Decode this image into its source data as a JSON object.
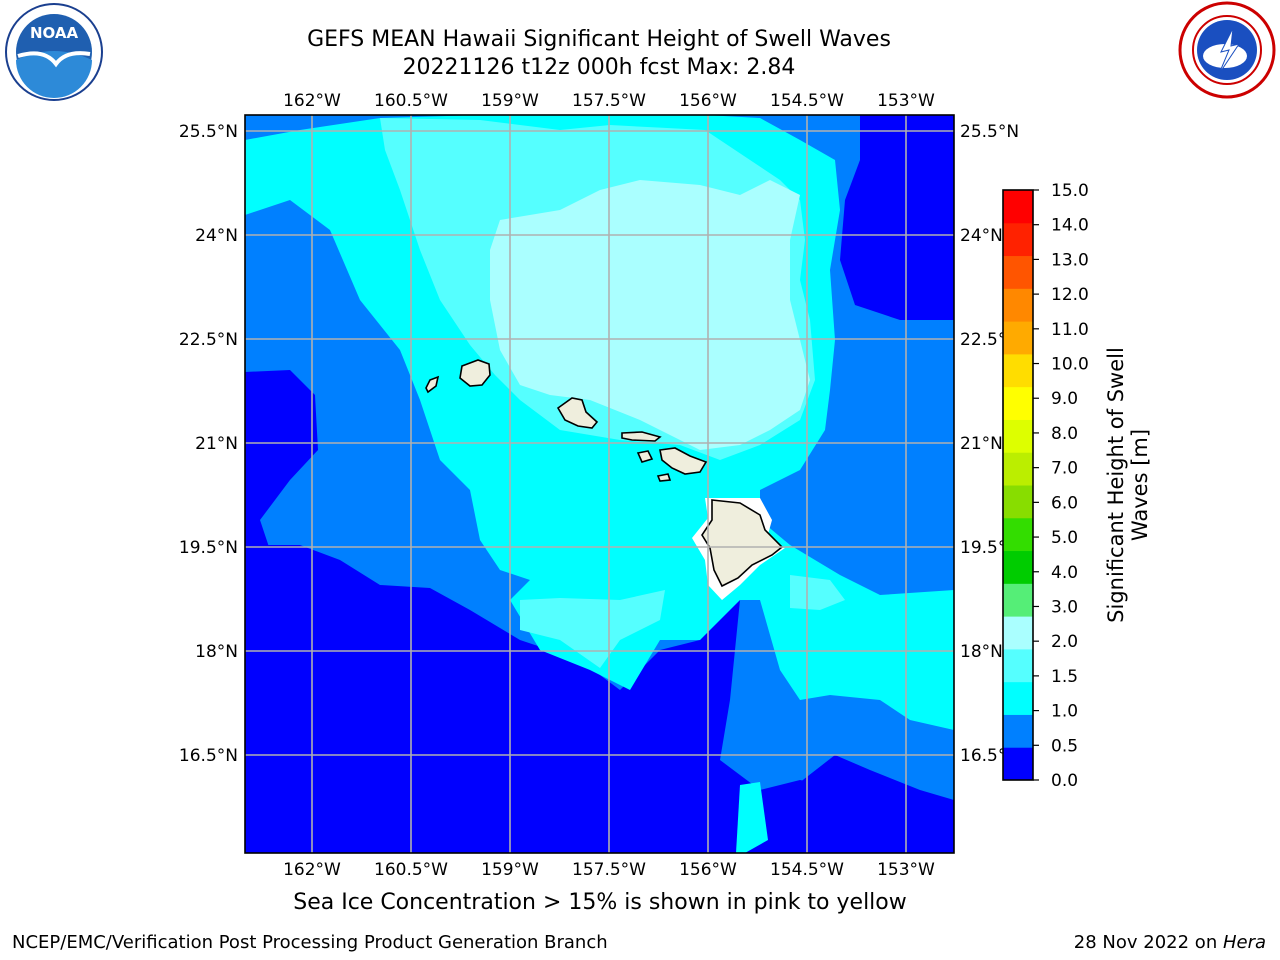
{
  "header": {
    "title_line1": "GEFS MEAN Hawaii Significant Height of Swell Waves",
    "title_line2": "20221126 t12z 000h fcst   Max: 2.84"
  },
  "logos": {
    "left": {
      "name": "noaa-logo",
      "text": "NOAA",
      "ring_text": "NATIONAL OCEANIC AND ATMOSPHERIC ADMINISTRATION · U.S. DEPARTMENT OF COMMERCE"
    },
    "right": {
      "name": "nws-logo",
      "ring_text": "NATIONAL WEATHER SERVICE"
    }
  },
  "map": {
    "lon_ticks": [
      "162°W",
      "160.5°W",
      "159°W",
      "157.5°W",
      "156°W",
      "154.5°W",
      "153°W"
    ],
    "lat_ticks": [
      "25.5°N",
      "24°N",
      "22.5°N",
      "21°N",
      "19.5°N",
      "18°N",
      "16.5°N"
    ],
    "lon_values": [
      -162,
      -160.5,
      -159,
      -157.5,
      -156,
      -154.5,
      -153
    ],
    "lat_values": [
      25.5,
      24,
      22.5,
      21,
      19.5,
      18,
      16.5
    ],
    "colors": {
      "land": "#efeedd",
      "grid": "#b0b0b0",
      "no_data": "#ffffff"
    }
  },
  "colorbar": {
    "label": "Significant Height of Swell Waves [m]",
    "label_line1": "Significant Height of Swell",
    "label_line2": "Waves [m]",
    "ticks": [
      "0.0",
      "0.5",
      "1.0",
      "1.5",
      "2.0",
      "3.0",
      "4.0",
      "5.0",
      "6.0",
      "7.0",
      "8.0",
      "9.0",
      "10.0",
      "11.0",
      "12.0",
      "13.0",
      "14.0",
      "15.0"
    ],
    "colors": [
      "#0000ff",
      "#0080ff",
      "#00ffff",
      "#55ffff",
      "#aaffff",
      "#55ee77",
      "#00cc00",
      "#33dd00",
      "#88dd00",
      "#bbee00",
      "#ddff00",
      "#ffff00",
      "#ffdd00",
      "#ffaa00",
      "#ff8800",
      "#ff5500",
      "#ff2200",
      "#ff0000"
    ]
  },
  "note": "Sea Ice Concentration > 15% is shown in pink to yellow",
  "footer": {
    "left": "NCEP/EMC/Verification Post Processing Product Generation Branch",
    "right_date": "28 Nov 2022 on ",
    "right_machine": "Hera"
  }
}
